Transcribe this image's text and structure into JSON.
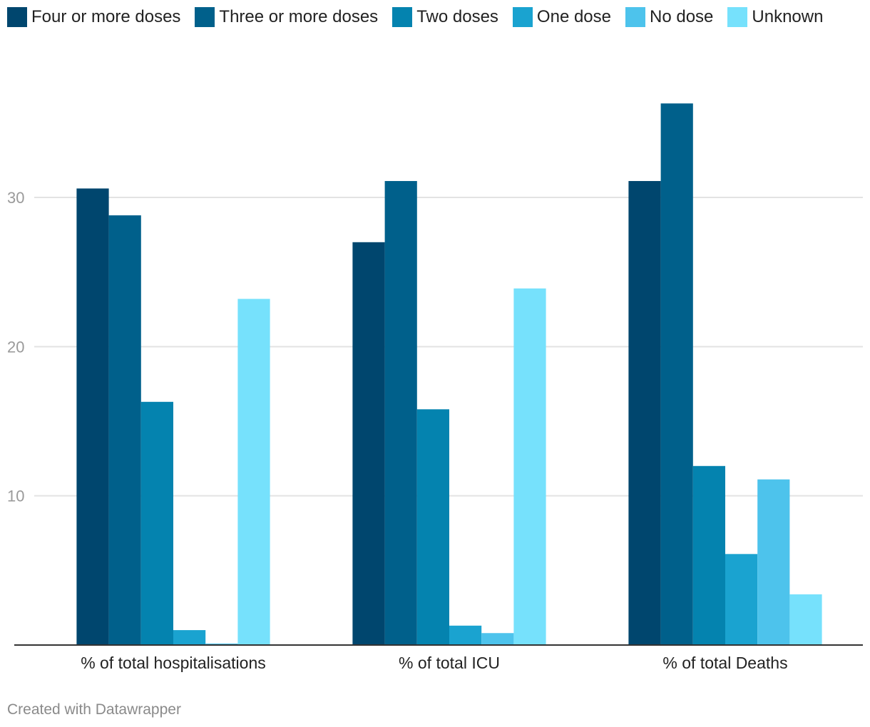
{
  "chart_data": {
    "type": "bar",
    "categories": [
      "% of total hospitalisations",
      "% of total ICU",
      "% of total Deaths"
    ],
    "series": [
      {
        "name": "Four or more doses",
        "color": "#00466e",
        "values": [
          30.6,
          27.0,
          31.1
        ]
      },
      {
        "name": "Three or more doses",
        "color": "#00608b",
        "values": [
          28.8,
          31.1,
          36.3
        ]
      },
      {
        "name": "Two doses",
        "color": "#0483af",
        "values": [
          16.3,
          15.8,
          12.0
        ]
      },
      {
        "name": "One dose",
        "color": "#1aa3d0",
        "values": [
          1.0,
          1.3,
          6.1
        ]
      },
      {
        "name": "No dose",
        "color": "#4dc3ec",
        "values": [
          0.1,
          0.8,
          11.1
        ]
      },
      {
        "name": "Unknown",
        "color": "#76e1fc",
        "values": [
          23.2,
          23.9,
          3.4
        ]
      }
    ],
    "yticks": [
      "10",
      "20",
      "30"
    ],
    "ylim": [
      0,
      41.8
    ],
    "grid": true,
    "legend_position": "top-left",
    "title": "",
    "xlabel": "",
    "ylabel": ""
  },
  "footer": {
    "credit": "Created with Datawrapper"
  }
}
